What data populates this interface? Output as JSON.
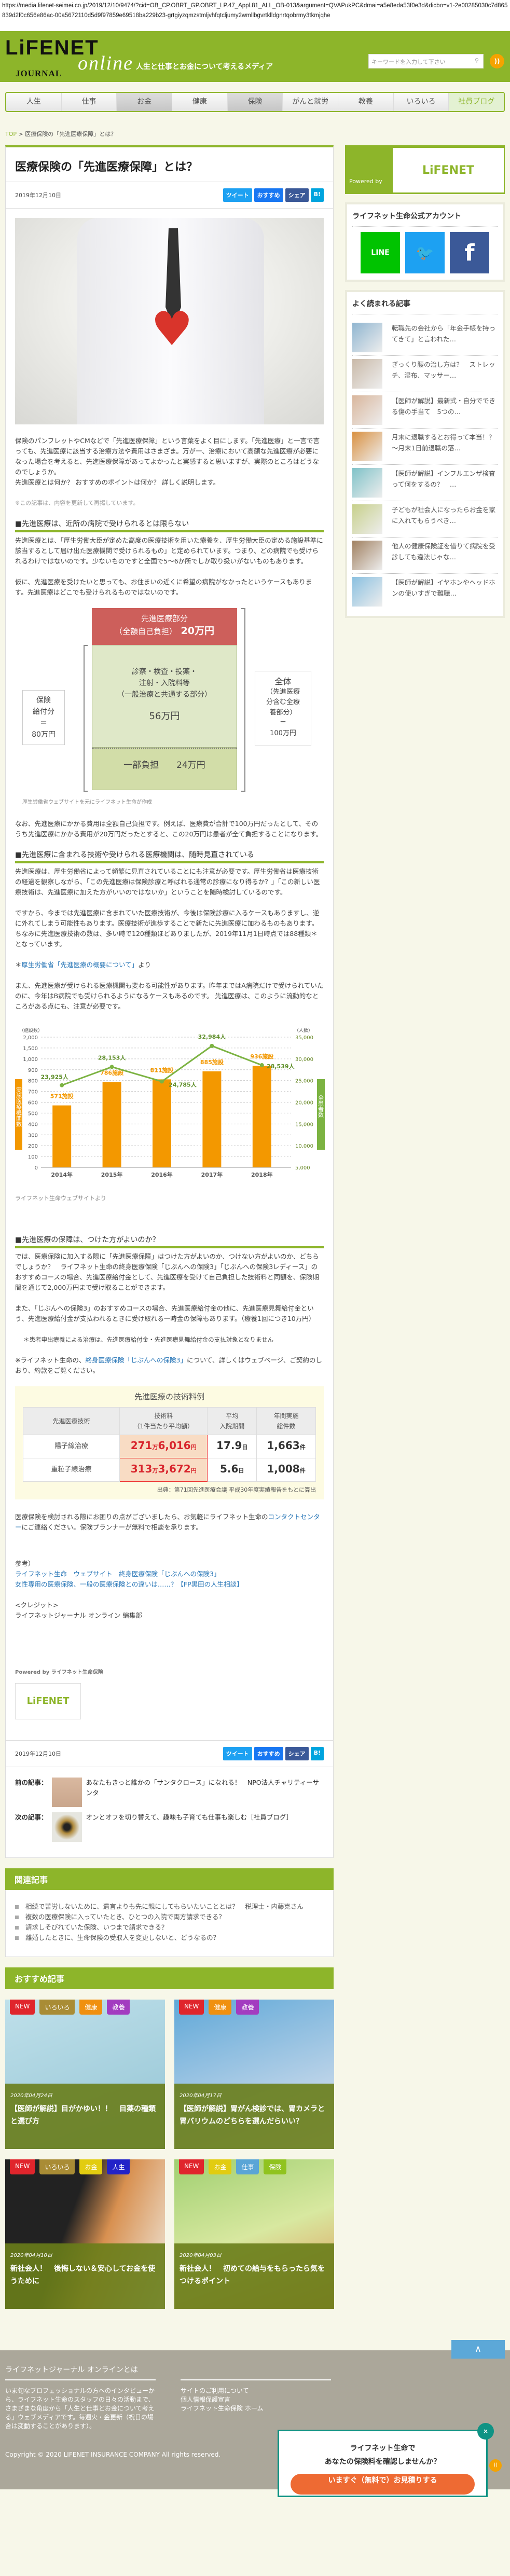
{
  "url": "https://media.lifenet-seimei.co.jp/2019/12/10/9474/?cid=OB_CP.OBRT_GP.OBRT_LP.47_Appl.81_ALL_OB-013&argument=QVAPukPC&dmai=a5e8eda53f0e3d&dicbo=v1-2e00285030c7d865839d2f0c656e86ac-00a5672110d5d9f97859e69518ba229b23-grtgiyzqmzstmljvhfqtcljumy2wmllbgvrtklldgnrtqobrmy3tkmjqhe",
  "header": {
    "logo": "LiFENET",
    "logo_sub": "JOURNAL",
    "logo_online": "online",
    "tagline": "人生と仕事とお金について考えるメディア",
    "search_placeholder": "キーワードを入力して下さい"
  },
  "nav": [
    "人生",
    "仕事",
    "お金",
    "健康",
    "保険",
    "がんと就労",
    "教養",
    "いろいろ",
    "社員ブログ"
  ],
  "breadcrumb": {
    "top": "TOP",
    "sep": ">",
    "current": "医療保険の「先進医療保障」とは？"
  },
  "article": {
    "title": "医療保険の「先進医療保障」とは？",
    "date": "2019年12月10日",
    "share": {
      "tweet": "ツイート",
      "recommend": "おすすめ",
      "share": "シェア",
      "hatena": "B!"
    },
    "intro": "保険のパンフレットやCMなどで「先進医療保障」という言葉をよく目にします。「先進医療」と一言で言っても、先進医療に該当する治療方法や費用はさまざま。万が一、治療において高額な先進医療が必要になった場合を考えると、先進医療保障があってよかったと実感すると思いますが、実際のところはどうなのでしょうか。",
    "intro2": "先進医療とは何か？ おすすめのポイントは何か？ 詳しく説明します。",
    "note": "※この記事は、内容を更新して再掲しています。",
    "h1": "■先進医療は、近所の病院で受けられるとは限らない",
    "p1": "先進医療とは、「厚生労働大臣が定めた高度の医療技術を用いた療養を、厚生労働大臣の定める施設基準に該当するとして届け出た医療機関で受けられるもの」と定められています。つまり、どの病院でも受けられるわけではないのです。少ないものですと全国で5～6か所でしか取り扱いがないものもあります。",
    "p2": "仮に、先進医療を受けたいと思っても、お住まいの近くに希望の病院がなかったというケースもあります。先進医療はどこでも受けられるものではないのです。",
    "diagram": {
      "adv_title": "先進医療部分",
      "adv_sub": "（全額自己負担）",
      "adv_amount": "20万円",
      "common": "診察・検査・投薬・\n注射・入院料等\n（一般治療と共通する部分）",
      "common_amount": "56万円",
      "partial": "一部負担",
      "partial_amount": "24万円",
      "left": "保険\n給付分\n＝\n80万円",
      "right_title": "全体",
      "right_sub": "（先進医療\n分含む全療\n養部分）\n＝\n100万円"
    },
    "diagram_caption": "厚生労働省ウェブサイトを元にライフネット生命が作成",
    "p3": "なお、先進医療にかかる費用は全額自己負担です。例えば、医療費が合計で100万円だったとして、そのうち先進医療にかかる費用が20万円だったとすると、この20万円は患者が全て負担することになります。",
    "h2": "■先進医療に含まれる技術や受けられる医療機関は、随時見直されている",
    "p4": "先進医療は、厚生労働省によって頻繁に見直されていることにも注意が必要です。厚生労働省は医療技術の経過を観察しながら、「この先進医療は保険診療と呼ばれる通常の診療になり得るか？」「この新しい医療技術は、先進医療に加えた方がいいのではないか」ということを随時検討しているのです。",
    "p5": "ですから、今までは先進医療に含まれていた医療技術が、今後は保険診療に入るケースもありますし、逆に外れてしまう可能性もあります。医療技術が進歩することで新たに先進医療に加わるものもあります。ちなみに先進医療技術の数は、多い時で120種類ほどありましたが、2019年11月1日時点では88種類＊となっています。",
    "ref_prefix": "＊",
    "ref_link": "厚生労働省「先進医療の概要について」",
    "ref_suffix": "より",
    "p6": "また、先進医療が受けられる医療機関も変わる可能性があります。昨年まではA病院だけで受けられていたのに、今年はB病院でも受けられるようになるケースもあるのです。 先進医療は、このように流動的なところがある点にも、注意が必要です。",
    "chart_caption": "ライフネット生命ウェブサイトより",
    "h3": "■先進医療の保障は、つけた方がよいのか？",
    "p7": "では、医療保険に加入する際に「先進医療保障」はつけた方がよいのか、つけない方がよいのか、どちらでしょうか？　ライフネット生命の終身医療保険「じぶんへの保険3」「じぶんへの保険3レディース」のおすすめコースの場合、先進医療給付金として、先進医療を受けて自己負担した技術料と同額を、保険期間を通じて2,000万円まで受け取ることができます。",
    "p8": "また、「じぶんへの保険3」のおすすめコースの場合、先進医療給付金の他に、先進医療見舞給付金という、先進医療給付金が支払われるときに受け取れる一時金の保障もあります。（療養1回につき10万円）",
    "p8_note": "＊患者申出療養による治療は、先進医療給付金・先進医療見舞給付金の支払対象となりません",
    "p9_prefix": "※ライフネット生命の、",
    "p9_link": "終身医療保険「じぶんへの保険3」",
    "p9_suffix": "について、詳しくはウェブページ、ご契約のしおり、約款をご覧ください。",
    "table": {
      "title": "先進医療の技術料例",
      "headers": [
        "先進医療技術",
        "技術料\n（1件当たり平均額）",
        "平均\n入院期間",
        "年間実施\n総件数"
      ],
      "rows": [
        {
          "name": "陽子線治療",
          "fee_man": "271",
          "fee_rest": "6,016",
          "days": "17.9",
          "count": "1,663"
        },
        {
          "name": "重粒子線治療",
          "fee_man": "313",
          "fee_rest": "3,672",
          "days": "5.6",
          "count": "1,008"
        }
      ],
      "unit_man": "万",
      "unit_yen": "円",
      "unit_day": "日",
      "unit_count": "件",
      "source": "出典：第71回先進医療会議 平成30年度実績報告をもとに算出"
    },
    "p10_prefix": "医療保険を検討される際にお困りの点がございましたら、お気軽にライフネット生命の",
    "p10_link": "コンタクトセンター",
    "p10_suffix": "にご連絡ください。保険プランナーが無料で相談を承ります。",
    "ref_label": "参考）",
    "ref_links": [
      "ライフネット生命　ウェブサイト　終身医療保険「じぶんへの保険3」",
      "女性専用の医療保険、一般の医療保険との違いは……？【FP黒田の人生相談】"
    ],
    "credit_label": "<クレジット>",
    "credit": "ライフネットジャーナル オンライン 編集部",
    "powered": "Powered by ライフネット生命保険",
    "powered_logo": "LiFENET"
  },
  "prevnext": {
    "prev_label": "前の記事：",
    "prev": "あなたもきっと誰かの「サンタクロース」になれる！　NPO法人チャリティーサンタ",
    "next_label": "次の記事：",
    "next": "オンとオフを切り替えて、趣味も子育ても仕事も楽しむ［社員ブログ］"
  },
  "related": {
    "title": "関連記事",
    "items": [
      "相続で苦労しないために、遺言よりも先に親にしてもらいたいこととは？　税理士・内藤克さん",
      "複数の医療保険に入っていたとき、ひとつの入院で両方請求できる？",
      "請求しそびれていた保険、いつまで請求できる？",
      "離婚したときに、生命保険の受取人を変更しないと、どうなるの？"
    ]
  },
  "recommend": {
    "title": "おすすめ記事",
    "cards": [
      {
        "tags": [
          "NEW",
          "いろいろ",
          "健康",
          "教養"
        ],
        "date": "2020年04月24日",
        "title": "【医師が解説】目がかゆい！！　目薬の種類と選び方"
      },
      {
        "tags": [
          "NEW",
          "健康",
          "教養"
        ],
        "date": "2020年04月17日",
        "title": "【医師が解説】胃がん検診では、胃カメラと胃バリウムのどちらを選んだらいい？"
      },
      {
        "tags": [
          "NEW",
          "いろいろ",
          "お金",
          "人生"
        ],
        "date": "2020年04月10日",
        "title": "新社会人！　後悔しない＆安心してお金を使うために"
      },
      {
        "tags": [
          "NEW",
          "お金",
          "仕事",
          "保険"
        ],
        "date": "2020年04月03日",
        "title": "新社会人！　初めての給与をもらったら気をつけるポイント"
      }
    ]
  },
  "tag_colors": {
    "NEW": "#e0252c",
    "いろいろ": "#a98c35",
    "健康": "#f0900f",
    "教養": "#a33cc0",
    "お金": "#e2cc10",
    "人生": "#2323c8",
    "仕事": "#5aa5d6",
    "保険": "#90c31f"
  },
  "sidebar": {
    "powered_by": "Powered by",
    "logo": "LiFENET",
    "sns_title": "ライフネット生命公式アカウント",
    "sns": [
      "LINE",
      "Twitter",
      "Facebook"
    ],
    "popular_title": "よく読まれる記事",
    "popular": [
      "転職先の会社から「年金手帳を持ってきて」と言われた…",
      "ぎっくり腰の治し方は？　ストレッチ、湿布、マッサー…",
      "【医師が解説】最新式・自分でできる傷の手当て　5つの…",
      "月末に退職するとお得って本当！？ ～月末1日前退職の落…",
      "【医師が解説】インフルエンザ検査って何をするの？　…",
      "子どもが社会人になったらお金を家に入れてもらうべき…",
      "他人の健康保険証を借りて病院を受診しても違法じゃな…",
      "【医師が解説】イヤホンやヘッドホンの使いすぎで難聴…"
    ]
  },
  "footer": {
    "about_title": "ライフネットジャーナル オンラインとは",
    "about": "いま旬なプロフェッショナルの方へのインタビューから、ライフネット生命のスタッフの日々の活動まで、さまざまな角度から「人生と仕事とお金について考える」ウェブメディアです。毎週火・金更新（祝日の場合は変動することがあります）。",
    "links": [
      "サイトのご利用について",
      "個人情報保護宣言",
      "ライフネット生命保険 ホーム"
    ],
    "copyright": "Copyright © 2020 LIFENET INSURANCE COMPANY All rights reserved.",
    "totop": "∧"
  },
  "popup": {
    "line1": "ライフネット生命で",
    "line2": "あなたの保険料を確認しませんか？",
    "button": "いますぐ（無料で）お見積りする",
    "close": "×"
  },
  "colors": {
    "brand_green": "#8db52a",
    "bar_orange": "#f39800",
    "line_green": "#7cb342"
  },
  "chart_data": {
    "type": "bar+line",
    "categories": [
      "2014年",
      "2015年",
      "2016年",
      "2017年",
      "2018年"
    ],
    "series": [
      {
        "name": "実施医療機関数",
        "type": "bar",
        "axis": "left",
        "values": [
          571,
          786,
          811,
          885,
          936
        ],
        "labels": [
          "571施設",
          "786施設",
          "811施設",
          "885施設",
          "936施設"
        ]
      },
      {
        "name": "全患者数",
        "type": "line",
        "axis": "right",
        "values": [
          23925,
          28153,
          24785,
          32984,
          28539
        ],
        "labels": [
          "23,925人",
          "28,153人",
          "24,785人",
          "32,984人",
          "28,539人"
        ]
      }
    ],
    "left_unit": "（施設数）",
    "right_unit": "（人数）",
    "left_ticks": [
      "0",
      "100",
      "200",
      "300",
      "400",
      "500",
      "600",
      "700",
      "800",
      "900",
      "1,000",
      "1,500",
      "2,000"
    ],
    "right_ticks": [
      "5,000",
      "10,000",
      "15,000",
      "20,000",
      "25,000",
      "30,000",
      "35,000"
    ],
    "left_axis_note": "piecewise: 0-1,000 step 100, then 1,500, 2,000",
    "ylim_right": [
      5000,
      35000
    ],
    "grid": true
  }
}
